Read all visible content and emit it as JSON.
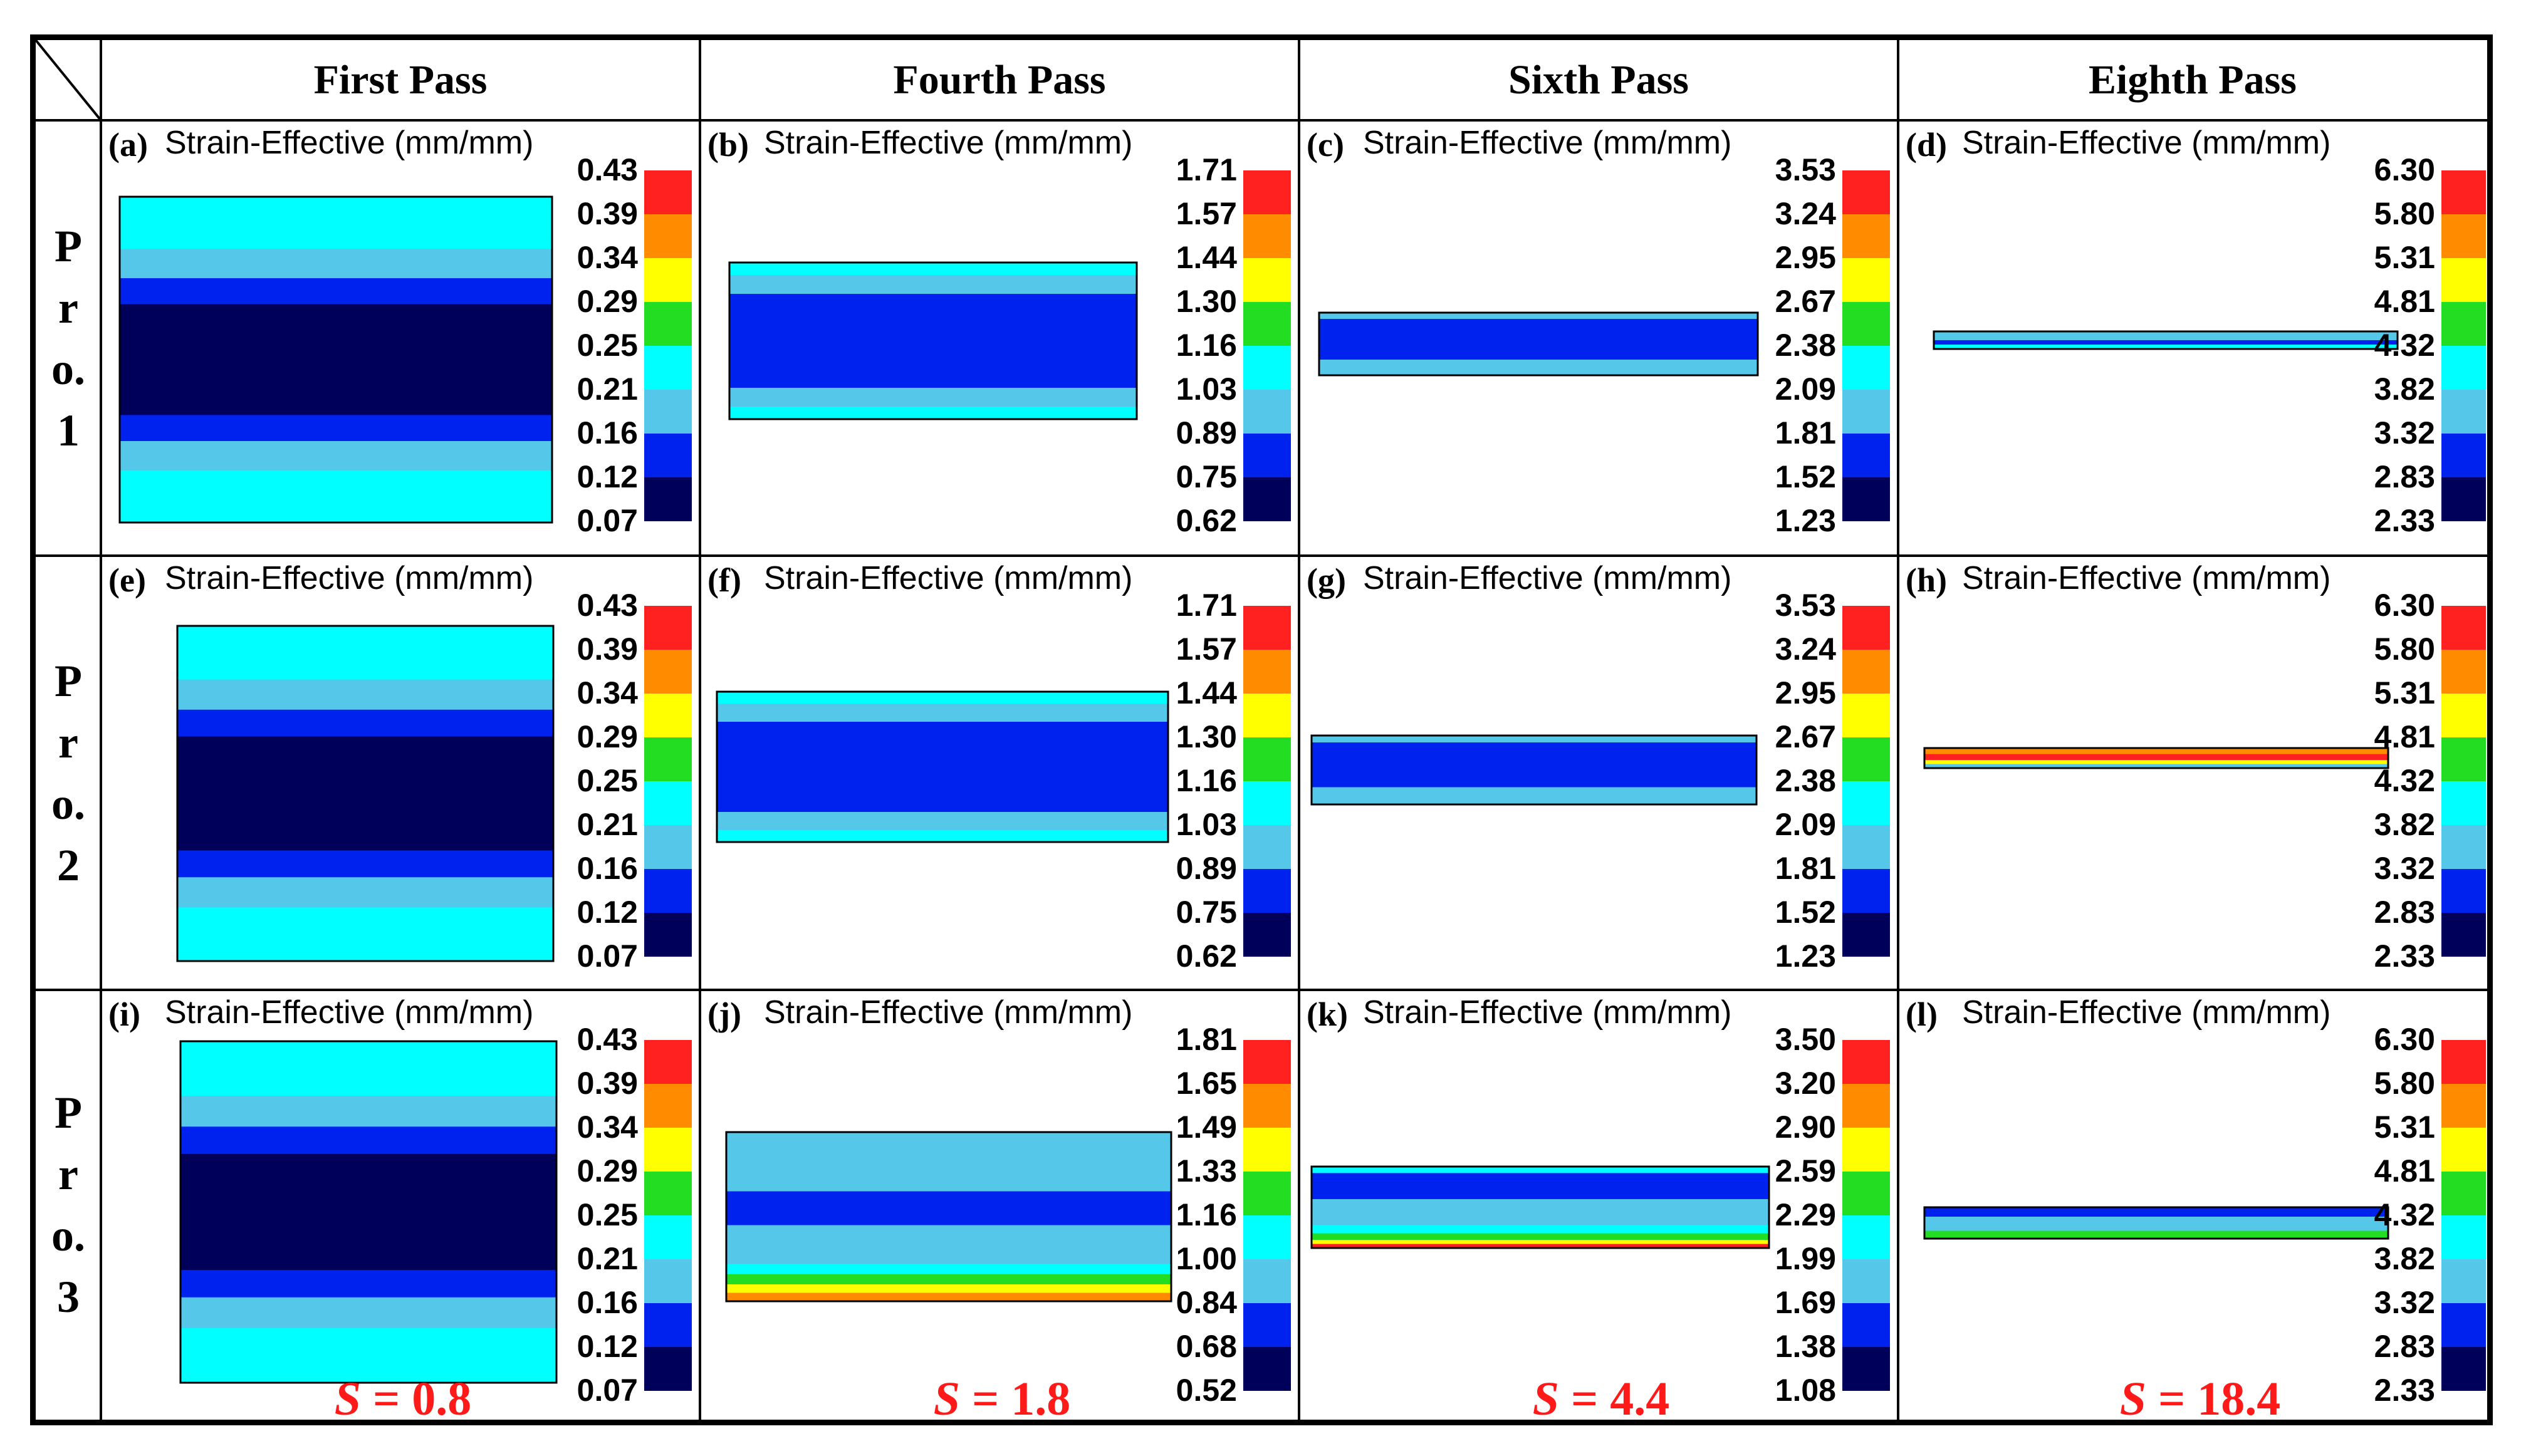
{
  "figure": {
    "columns": [
      "First Pass",
      "Fourth Pass",
      "Sixth Pass",
      "Eighth Pass"
    ],
    "rows": [
      {
        "label_lines": [
          "P",
          "r",
          "o.",
          "1"
        ]
      },
      {
        "label_lines": [
          "P",
          "r",
          "o.",
          "2"
        ]
      },
      {
        "label_lines": [
          "P",
          "r",
          "o.",
          "3"
        ]
      }
    ],
    "colormap": [
      "#ff2020",
      "#ff8c00",
      "#ffff00",
      "#22dd22",
      "#00ffff",
      "#55c8ea",
      "#0022ee",
      "#00005a"
    ],
    "panels": [
      {
        "tag": "(a)",
        "title": "Strain-Effective (mm/mm)",
        "ticks": [
          "0.43",
          "0.39",
          "0.34",
          "0.29",
          "0.25",
          "0.21",
          "0.16",
          "0.12",
          "0.07"
        ]
      },
      {
        "tag": "(b)",
        "title": "Strain-Effective (mm/mm)",
        "ticks": [
          "1.71",
          "1.57",
          "1.44",
          "1.30",
          "1.16",
          "1.03",
          "0.89",
          "0.75",
          "0.62"
        ]
      },
      {
        "tag": "(c)",
        "title": "Strain-Effective (mm/mm)",
        "ticks": [
          "3.53",
          "3.24",
          "2.95",
          "2.67",
          "2.38",
          "2.09",
          "1.81",
          "1.52",
          "1.23"
        ]
      },
      {
        "tag": "(d)",
        "title": "Strain-Effective (mm/mm)",
        "ticks": [
          "6.30",
          "5.80",
          "5.31",
          "4.81",
          "4.32",
          "3.82",
          "3.32",
          "2.83",
          "2.33"
        ]
      },
      {
        "tag": "(e)",
        "title": "Strain-Effective (mm/mm)",
        "ticks": [
          "0.43",
          "0.39",
          "0.34",
          "0.29",
          "0.25",
          "0.21",
          "0.16",
          "0.12",
          "0.07"
        ]
      },
      {
        "tag": "(f)",
        "title": "Strain-Effective (mm/mm)",
        "ticks": [
          "1.71",
          "1.57",
          "1.44",
          "1.30",
          "1.16",
          "1.03",
          "0.89",
          "0.75",
          "0.62"
        ]
      },
      {
        "tag": "(g)",
        "title": "Strain-Effective (mm/mm)",
        "ticks": [
          "3.53",
          "3.24",
          "2.95",
          "2.67",
          "2.38",
          "2.09",
          "1.81",
          "1.52",
          "1.23"
        ]
      },
      {
        "tag": "(h)",
        "title": "Strain-Effective (mm/mm)",
        "ticks": [
          "6.30",
          "5.80",
          "5.31",
          "4.81",
          "4.32",
          "3.82",
          "3.32",
          "2.83",
          "2.33"
        ]
      },
      {
        "tag": "(i)",
        "title": "Strain-Effective (mm/mm)",
        "ticks": [
          "0.43",
          "0.39",
          "0.34",
          "0.29",
          "0.25",
          "0.21",
          "0.16",
          "0.12",
          "0.07"
        ]
      },
      {
        "tag": "(j)",
        "title": "Strain-Effective (mm/mm)",
        "ticks": [
          "1.81",
          "1.65",
          "1.49",
          "1.33",
          "1.16",
          "1.00",
          "0.84",
          "0.68",
          "0.52"
        ]
      },
      {
        "tag": "(k)",
        "title": "Strain-Effective (mm/mm)",
        "ticks": [
          "3.50",
          "3.20",
          "2.90",
          "2.59",
          "2.29",
          "1.99",
          "1.69",
          "1.38",
          "1.08"
        ]
      },
      {
        "tag": "(l)",
        "title": "Strain-Effective (mm/mm)",
        "ticks": [
          "6.30",
          "5.80",
          "5.31",
          "4.81",
          "4.32",
          "3.82",
          "3.32",
          "2.83",
          "2.33"
        ]
      }
    ],
    "s_labels": [
      {
        "symbol": "S",
        "eq": " = 0.8"
      },
      {
        "symbol": "S",
        "eq": " = 1.8"
      },
      {
        "symbol": "S",
        "eq": " = 4.4"
      },
      {
        "symbol": "S",
        "eq": " = 18.4"
      }
    ]
  }
}
